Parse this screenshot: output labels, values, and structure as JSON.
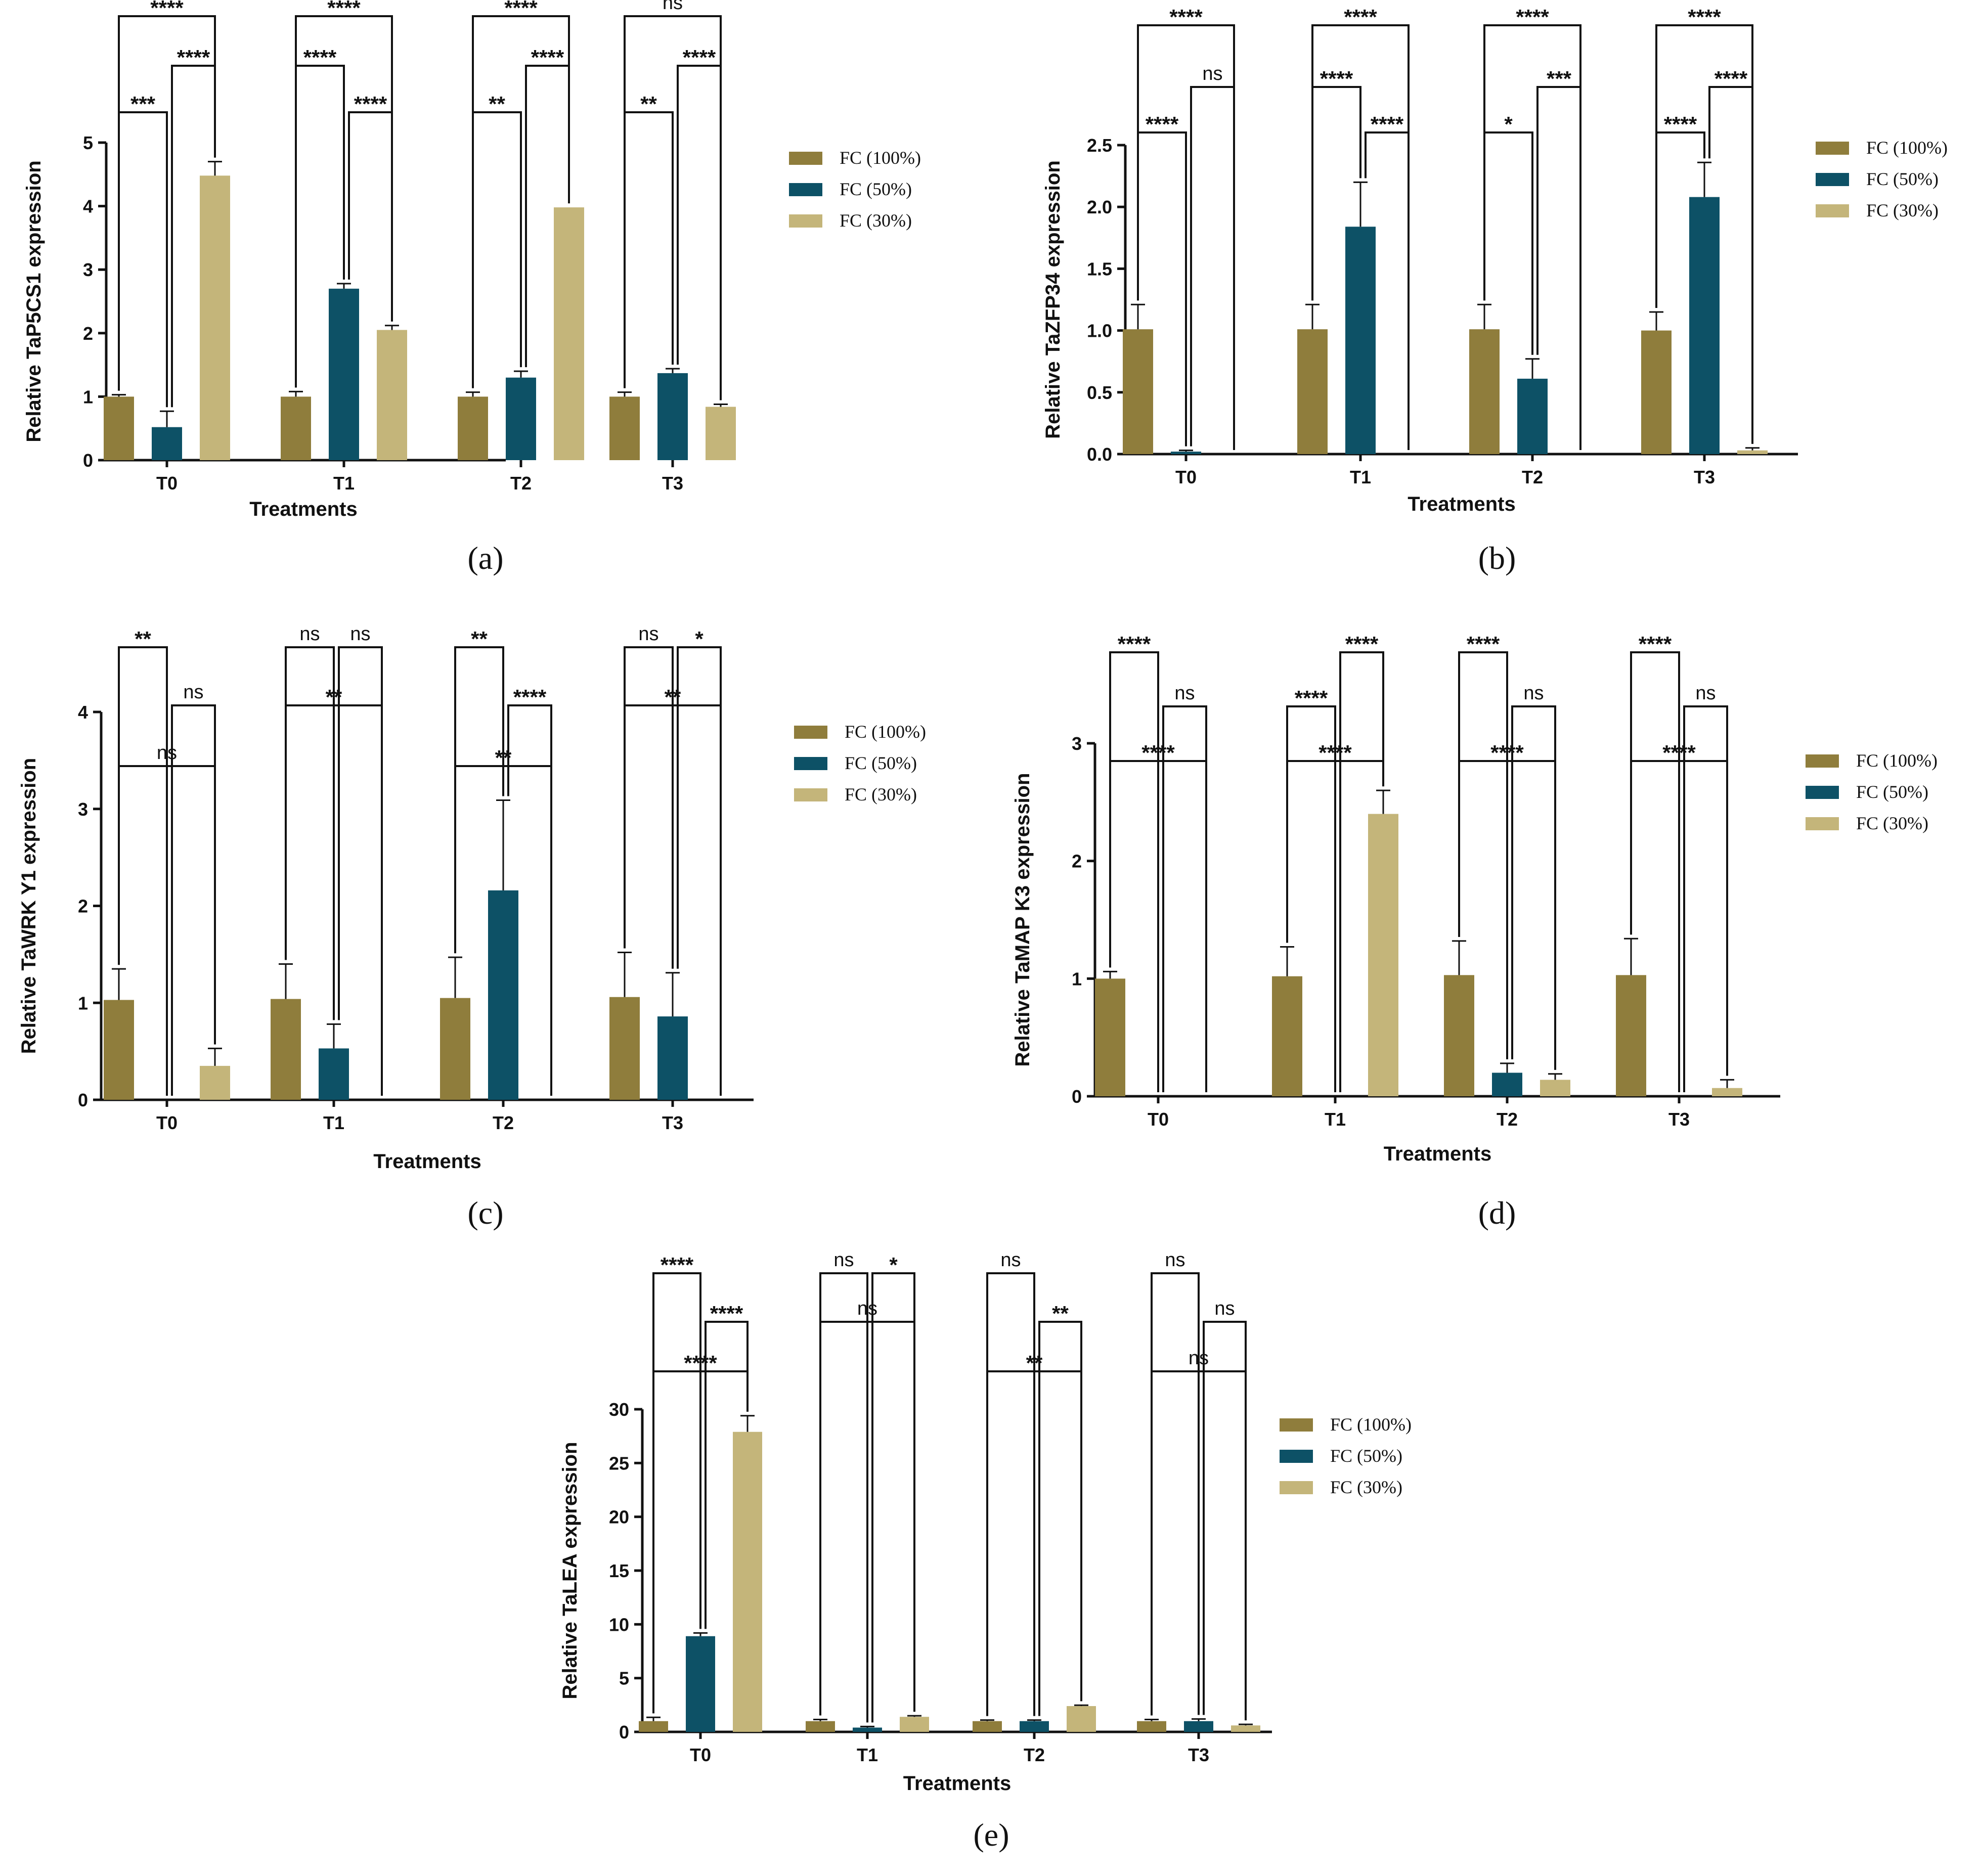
{
  "legend": [
    "FC (100%)",
    "FC (50%)",
    "FC (30%)"
  ],
  "colors": [
    "#8f7d3c",
    "#0d5166",
    "#c4b57a"
  ],
  "chart_data": [
    {
      "type": "bar",
      "panel": "(a)",
      "ylabel": "Relative TaP5CS1 expression",
      "xlabel": "Treatments",
      "categories": [
        "T0",
        "T1",
        "T2",
        "T3"
      ],
      "ylim": [
        0,
        5
      ],
      "yticks": [
        "0",
        "1",
        "2",
        "3",
        "4",
        "5"
      ],
      "series": [
        {
          "name": "FC (100%)",
          "values": [
            1.0,
            1.0,
            1.0,
            1.0
          ],
          "errors": [
            0.03,
            0.08,
            0.07,
            0.07
          ]
        },
        {
          "name": "FC (50%)",
          "values": [
            0.52,
            2.7,
            1.3,
            1.37
          ],
          "errors": [
            0.25,
            0.08,
            0.1,
            0.07
          ]
        },
        {
          "name": "FC (30%)",
          "values": [
            4.48,
            2.05,
            3.98,
            0.84
          ],
          "errors": [
            0.22,
            0.07,
            0.0,
            0.04
          ]
        }
      ],
      "significance": [
        {
          "group": 0,
          "from": 0,
          "to": 2,
          "level": 3,
          "label": "****"
        },
        {
          "group": 0,
          "from": 1,
          "to": 2,
          "level": 2,
          "label": "****"
        },
        {
          "group": 0,
          "from": 0,
          "to": 1,
          "level": 1,
          "label": "***"
        },
        {
          "group": 1,
          "from": 0,
          "to": 2,
          "level": 3,
          "label": "****"
        },
        {
          "group": 1,
          "from": 0,
          "to": 1,
          "level": 2,
          "label": "****"
        },
        {
          "group": 1,
          "from": 1,
          "to": 2,
          "level": 1,
          "label": "****"
        },
        {
          "group": 2,
          "from": 0,
          "to": 2,
          "level": 3,
          "label": "****"
        },
        {
          "group": 2,
          "from": 1,
          "to": 2,
          "level": 2,
          "label": "****"
        },
        {
          "group": 2,
          "from": 0,
          "to": 1,
          "level": 1,
          "label": "**"
        },
        {
          "group": 3,
          "from": 0,
          "to": 2,
          "level": 3,
          "label": "ns"
        },
        {
          "group": 3,
          "from": 1,
          "to": 2,
          "level": 2,
          "label": "****"
        },
        {
          "group": 3,
          "from": 0,
          "to": 1,
          "level": 1,
          "label": "**"
        }
      ]
    },
    {
      "type": "bar",
      "panel": "(b)",
      "ylabel": "Relative TaZFP34 expression",
      "xlabel": "Treatments",
      "categories": [
        "T0",
        "T1",
        "T2",
        "T3"
      ],
      "ylim": [
        0,
        2.5
      ],
      "yticks": [
        "0.0",
        "0.5",
        "1.0",
        "1.5",
        "2.0",
        "2.5"
      ],
      "series": [
        {
          "name": "FC (100%)",
          "values": [
            1.01,
            1.01,
            1.01,
            1.0
          ],
          "errors": [
            0.2,
            0.2,
            0.2,
            0.15
          ]
        },
        {
          "name": "FC (50%)",
          "values": [
            0.02,
            1.84,
            0.61,
            2.08
          ],
          "errors": [
            0.01,
            0.36,
            0.16,
            0.28
          ]
        },
        {
          "name": "FC (30%)",
          "values": [
            0.0,
            0.0,
            0.0,
            0.03
          ],
          "errors": [
            0.0,
            0.0,
            0.0,
            0.02
          ]
        }
      ],
      "significance": [
        {
          "group": 0,
          "from": 0,
          "to": 2,
          "level": 3,
          "label": "****"
        },
        {
          "group": 0,
          "from": 1,
          "to": 2,
          "level": 2,
          "label": "ns"
        },
        {
          "group": 0,
          "from": 0,
          "to": 1,
          "level": 1,
          "label": "****"
        },
        {
          "group": 1,
          "from": 0,
          "to": 2,
          "level": 3,
          "label": "****"
        },
        {
          "group": 1,
          "from": 0,
          "to": 1,
          "level": 2,
          "label": "****"
        },
        {
          "group": 1,
          "from": 1,
          "to": 2,
          "level": 1,
          "label": "****"
        },
        {
          "group": 2,
          "from": 0,
          "to": 2,
          "level": 3,
          "label": "****"
        },
        {
          "group": 2,
          "from": 1,
          "to": 2,
          "level": 2,
          "label": "***"
        },
        {
          "group": 2,
          "from": 0,
          "to": 1,
          "level": 1,
          "label": "*"
        },
        {
          "group": 3,
          "from": 0,
          "to": 2,
          "level": 3,
          "label": "****"
        },
        {
          "group": 3,
          "from": 1,
          "to": 2,
          "level": 2,
          "label": "****"
        },
        {
          "group": 3,
          "from": 0,
          "to": 1,
          "level": 1,
          "label": "****"
        }
      ]
    },
    {
      "type": "bar",
      "panel": "(c)",
      "ylabel": "Relative TaWRK Y1 expression",
      "xlabel": "Treatments",
      "categories": [
        "T0",
        "T1",
        "T2",
        "T3"
      ],
      "ylim": [
        0,
        4
      ],
      "yticks": [
        "0",
        "1",
        "2",
        "3",
        "4"
      ],
      "series": [
        {
          "name": "FC (100%)",
          "values": [
            1.03,
            1.04,
            1.05,
            1.06
          ],
          "errors": [
            0.32,
            0.36,
            0.42,
            0.46
          ]
        },
        {
          "name": "FC (50%)",
          "values": [
            0.0,
            0.53,
            2.16,
            0.86
          ],
          "errors": [
            0.0,
            0.25,
            0.93,
            0.45
          ]
        },
        {
          "name": "FC (30%)",
          "values": [
            0.35,
            0.0,
            0.0,
            0.0
          ],
          "errors": [
            0.18,
            0.0,
            0.0,
            0.0
          ]
        }
      ],
      "significance": [
        {
          "group": 0,
          "from": 0,
          "to": 2,
          "level": 3,
          "label": "ns"
        },
        {
          "group": 0,
          "from": 1,
          "to": 2,
          "level": 2,
          "label": "ns"
        },
        {
          "group": 0,
          "from": 0,
          "to": 1,
          "level": 1,
          "label": "**"
        },
        {
          "group": 1,
          "from": 0,
          "to": 2,
          "level": 2,
          "label": "**"
        },
        {
          "group": 1,
          "from": 0,
          "to": 1,
          "level": 1,
          "label": "ns"
        },
        {
          "group": 1,
          "from": 1,
          "to": 2,
          "level": 1,
          "label": "ns"
        },
        {
          "group": 2,
          "from": 0,
          "to": 2,
          "level": 3,
          "label": "**"
        },
        {
          "group": 2,
          "from": 1,
          "to": 2,
          "level": 2,
          "label": "****"
        },
        {
          "group": 2,
          "from": 0,
          "to": 1,
          "level": 1,
          "label": "**"
        },
        {
          "group": 3,
          "from": 0,
          "to": 2,
          "level": 2,
          "label": "**"
        },
        {
          "group": 3,
          "from": 0,
          "to": 1,
          "level": 1,
          "label": "ns"
        },
        {
          "group": 3,
          "from": 1,
          "to": 2,
          "level": 1,
          "label": "*"
        }
      ]
    },
    {
      "type": "bar",
      "panel": "(d)",
      "ylabel": "Relative TaMAP K3 expression",
      "xlabel": "Treatments",
      "categories": [
        "T0",
        "T1",
        "T2",
        "T3"
      ],
      "ylim": [
        0,
        3
      ],
      "yticks": [
        "0",
        "1",
        "2",
        "3"
      ],
      "series": [
        {
          "name": "FC (100%)",
          "values": [
            1.0,
            1.02,
            1.03,
            1.03
          ],
          "errors": [
            0.06,
            0.25,
            0.29,
            0.31
          ]
        },
        {
          "name": "FC (50%)",
          "values": [
            0.0,
            0.0,
            0.2,
            0.0
          ],
          "errors": [
            0.0,
            0.0,
            0.08,
            0.0
          ]
        },
        {
          "name": "FC (30%)",
          "values": [
            0.0,
            2.4,
            0.14,
            0.07
          ],
          "errors": [
            0.0,
            0.2,
            0.05,
            0.07
          ]
        }
      ],
      "significance": [
        {
          "group": 0,
          "from": 0,
          "to": 2,
          "level": 3,
          "label": "****"
        },
        {
          "group": 0,
          "from": 1,
          "to": 2,
          "level": 2,
          "label": "ns"
        },
        {
          "group": 0,
          "from": 0,
          "to": 1,
          "level": 1,
          "label": "****"
        },
        {
          "group": 1,
          "from": 0,
          "to": 2,
          "level": 3,
          "label": "****"
        },
        {
          "group": 1,
          "from": 0,
          "to": 1,
          "level": 2,
          "label": "****"
        },
        {
          "group": 1,
          "from": 1,
          "to": 2,
          "level": 1,
          "label": "****"
        },
        {
          "group": 2,
          "from": 0,
          "to": 2,
          "level": 3,
          "label": "****"
        },
        {
          "group": 2,
          "from": 1,
          "to": 2,
          "level": 2,
          "label": "ns"
        },
        {
          "group": 2,
          "from": 0,
          "to": 1,
          "level": 1,
          "label": "****"
        },
        {
          "group": 3,
          "from": 0,
          "to": 2,
          "level": 3,
          "label": "****"
        },
        {
          "group": 3,
          "from": 1,
          "to": 2,
          "level": 2,
          "label": "ns"
        },
        {
          "group": 3,
          "from": 0,
          "to": 1,
          "level": 1,
          "label": "****"
        }
      ]
    },
    {
      "type": "bar",
      "panel": "(e)",
      "ylabel": "Relative TaLEA expression",
      "xlabel": "Treatments",
      "categories": [
        "T0",
        "T1",
        "T2",
        "T3"
      ],
      "ylim": [
        0,
        30
      ],
      "yticks": [
        "0",
        "5",
        "10",
        "15",
        "20",
        "25",
        "30"
      ],
      "series": [
        {
          "name": "FC (100%)",
          "values": [
            1.0,
            1.0,
            1.0,
            1.0
          ],
          "errors": [
            0.35,
            0.15,
            0.1,
            0.15
          ]
        },
        {
          "name": "FC (50%)",
          "values": [
            8.9,
            0.4,
            1.0,
            1.0
          ],
          "errors": [
            0.3,
            0.1,
            0.1,
            0.2
          ]
        },
        {
          "name": "FC (30%)",
          "values": [
            27.9,
            1.4,
            2.4,
            0.6
          ],
          "errors": [
            1.5,
            0.1,
            0.08,
            0.1
          ]
        }
      ],
      "significance": [
        {
          "group": 0,
          "from": 0,
          "to": 2,
          "level": 3,
          "label": "****"
        },
        {
          "group": 0,
          "from": 1,
          "to": 2,
          "level": 2,
          "label": "****"
        },
        {
          "group": 0,
          "from": 0,
          "to": 1,
          "level": 1,
          "label": "****"
        },
        {
          "group": 1,
          "from": 0,
          "to": 2,
          "level": 2,
          "label": "ns"
        },
        {
          "group": 1,
          "from": 0,
          "to": 1,
          "level": 1,
          "label": "ns"
        },
        {
          "group": 1,
          "from": 1,
          "to": 2,
          "level": 1,
          "label": "*"
        },
        {
          "group": 2,
          "from": 0,
          "to": 2,
          "level": 3,
          "label": "**"
        },
        {
          "group": 2,
          "from": 1,
          "to": 2,
          "level": 2,
          "label": "**"
        },
        {
          "group": 2,
          "from": 0,
          "to": 1,
          "level": 1,
          "label": "ns"
        },
        {
          "group": 3,
          "from": 0,
          "to": 2,
          "level": 3,
          "label": "ns"
        },
        {
          "group": 3,
          "from": 1,
          "to": 2,
          "level": 2,
          "label": "ns"
        },
        {
          "group": 3,
          "from": 0,
          "to": 1,
          "level": 1,
          "label": "ns"
        }
      ]
    }
  ]
}
